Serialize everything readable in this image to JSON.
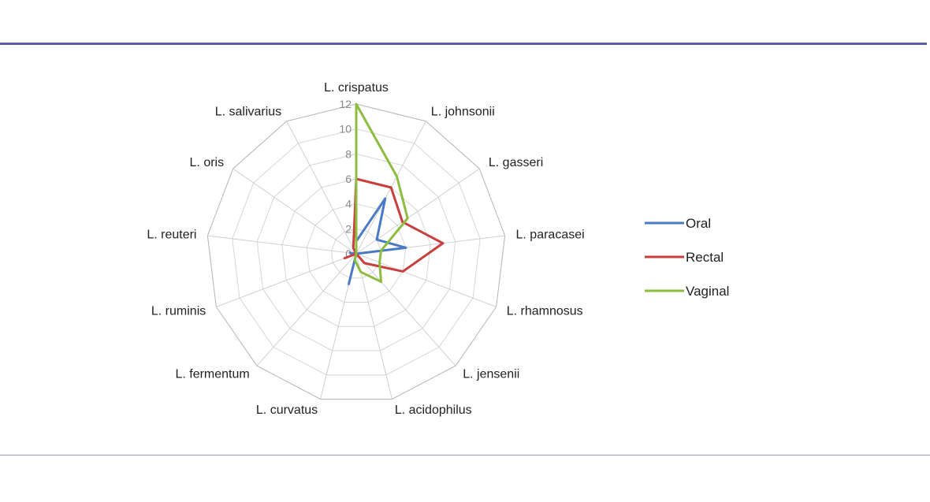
{
  "chart_data": {
    "type": "radar",
    "title": "",
    "categories": [
      "L. crispatus",
      "L. johnsonii",
      "L. gasseri",
      "L. paracasei",
      "L. rhamnosus",
      "L. jensenii",
      "L. acidophilus",
      "L. curvatus",
      "L. fermentum",
      "L. ruminis",
      "L. reuteri",
      "L. oris",
      "L. salivarius"
    ],
    "radial_ticks": [
      "0",
      "2",
      "4",
      "6",
      "8",
      "10",
      "12"
    ],
    "rmax": 12,
    "series": [
      {
        "name": "Oral",
        "color": "#4a7ac6",
        "values": [
          1,
          5,
          2,
          4,
          0,
          0,
          0,
          2.5,
          0,
          0,
          0.5,
          0,
          0
        ]
      },
      {
        "name": "Rectal",
        "color": "#c83f3c",
        "values": [
          6,
          6,
          4.5,
          7,
          4,
          1,
          0,
          0,
          0,
          1,
          0,
          0,
          0.5
        ]
      },
      {
        "name": "Vaginal",
        "color": "#8cbd3f",
        "values": [
          12,
          7,
          5,
          2,
          2,
          3,
          1.5,
          0.5,
          0,
          0,
          0,
          0,
          0
        ]
      }
    ],
    "legend_position": "right"
  }
}
